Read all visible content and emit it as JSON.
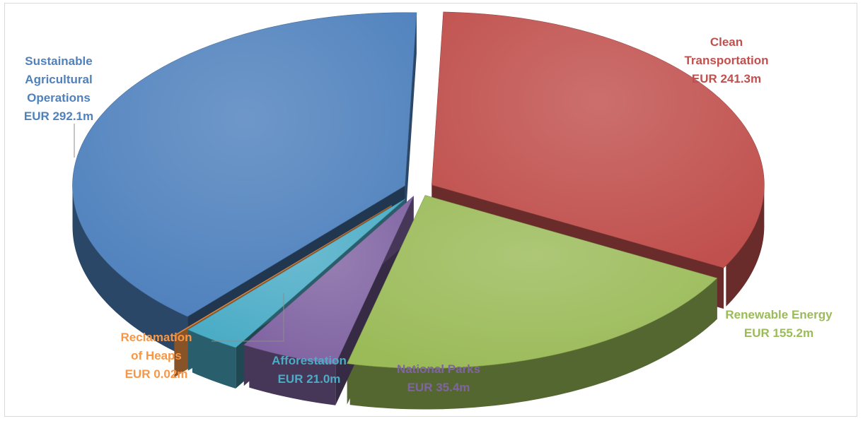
{
  "chart_data": {
    "type": "pie",
    "style": "3d-exploded",
    "title": "",
    "slices": [
      {
        "name": "Clean Transportation",
        "label_lines": [
          "Clean",
          "Transportation",
          "EUR 241.3m"
        ],
        "value": 241.3,
        "unit": "EUR m",
        "color": "#c0504d"
      },
      {
        "name": "Renewable Energy",
        "label_lines": [
          "Renewable Energy",
          "EUR 155.2m"
        ],
        "value": 155.2,
        "unit": "EUR m",
        "color": "#9bbb59"
      },
      {
        "name": "National Parks",
        "label_lines": [
          "National Parks",
          "EUR 35.4m"
        ],
        "value": 35.4,
        "unit": "EUR m",
        "color": "#8064a2"
      },
      {
        "name": "Afforestation",
        "label_lines": [
          "Afforestation",
          "EUR 21.0m"
        ],
        "value": 21.0,
        "unit": "EUR m",
        "color": "#4bacc6"
      },
      {
        "name": "Reclamation of Heaps",
        "label_lines": [
          "Reclamation",
          "of Heaps",
          "EUR 0.02m"
        ],
        "value": 0.02,
        "unit": "EUR m",
        "color": "#f79646"
      },
      {
        "name": "Sustainable Agricultural Operations",
        "label_lines": [
          "Sustainable",
          "Agricultural",
          "Operations",
          "EUR 292.1m"
        ],
        "value": 292.1,
        "unit": "EUR m",
        "color": "#4f81bd"
      }
    ],
    "legend": "none",
    "data_labels": "outside"
  }
}
